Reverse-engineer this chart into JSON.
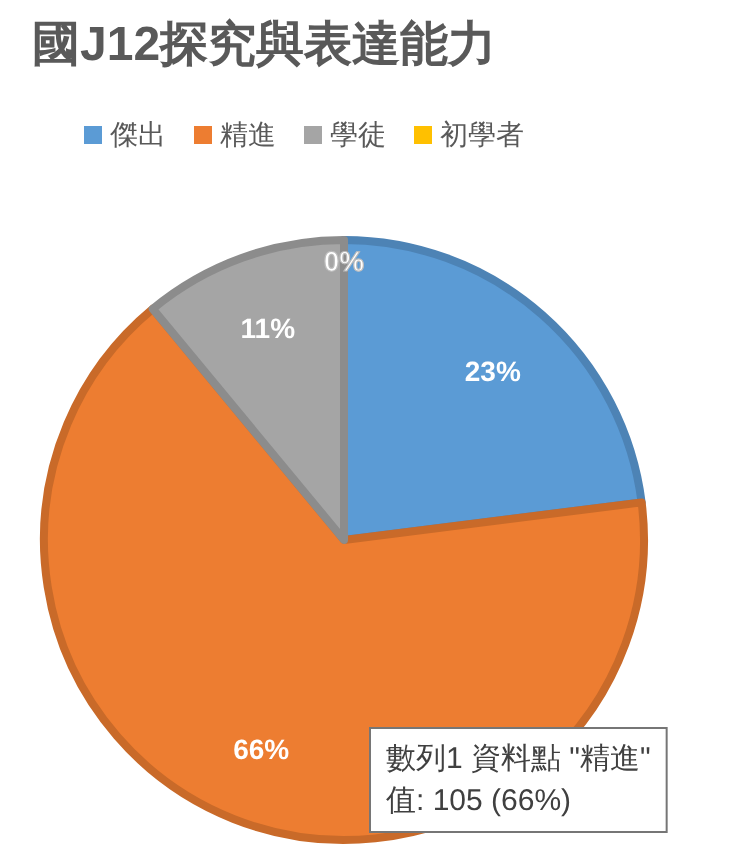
{
  "chart_data": {
    "type": "pie",
    "title": "國J12探究與表達能力",
    "categories": [
      "傑出",
      "精進",
      "學徒",
      "初學者"
    ],
    "values": [
      23,
      66,
      11,
      0
    ],
    "colors": [
      "#5b9bd5",
      "#ed7d31",
      "#a5a5a5",
      "#ffc000"
    ],
    "value_labels": [
      "23%",
      "66%",
      "11%",
      "0%"
    ],
    "legend": "top",
    "annotations": [
      "數列1 資料點 \"精進\"",
      "值: 105 (66%)"
    ]
  }
}
